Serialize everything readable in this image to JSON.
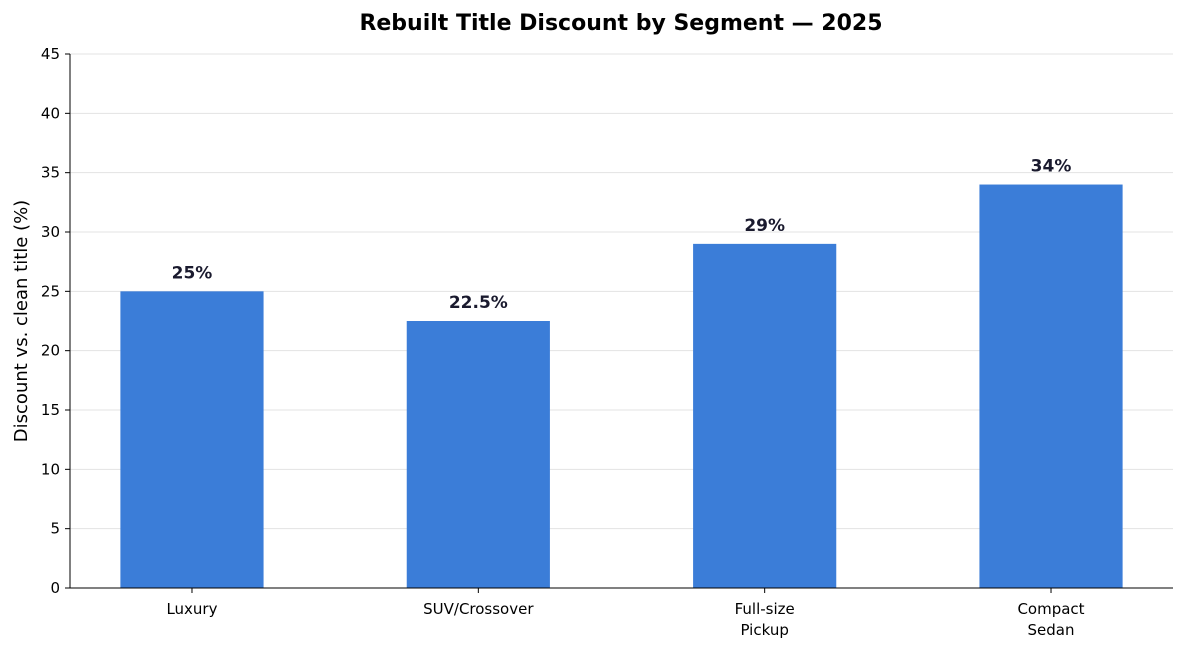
{
  "chart_data": {
    "type": "bar",
    "title": "Rebuilt Title Discount by Segment — 2025",
    "y_label": "Discount vs. clean title (%)",
    "categories": [
      "Luxury",
      "SUV/Crossover",
      "Full-size\nPickup",
      "Compact\nSedan"
    ],
    "values": [
      25,
      22.5,
      29,
      34
    ],
    "value_labels": [
      "25%",
      "22.5%",
      "29%",
      "34%"
    ],
    "color": "#3b7dd8",
    "ylim": [
      0,
      45
    ],
    "yticks": [
      0,
      5,
      10,
      15,
      20,
      25,
      30,
      35,
      40,
      45
    ],
    "grid": true
  }
}
